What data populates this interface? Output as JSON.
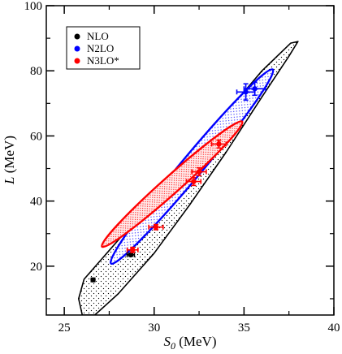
{
  "chart_data": {
    "type": "scatter",
    "title": "",
    "xlabel": {
      "main": "S",
      "sub": "0",
      "unit": " (MeV)"
    },
    "ylabel": "L (MeV)",
    "xlim": [
      24,
      40
    ],
    "ylim": [
      5,
      100
    ],
    "xticks": [
      25,
      30,
      35,
      40
    ],
    "yticks": [
      20,
      40,
      60,
      80,
      100
    ],
    "xtick_labels": [
      "25",
      "30",
      "35",
      "40"
    ],
    "ytick_labels": [
      "20",
      "40",
      "60",
      "80",
      "100"
    ],
    "legend_position": "top-left",
    "series": [
      {
        "name": "NLO",
        "color": "#000000",
        "points": [
          {
            "x": 26.6,
            "y": 15.8,
            "xerr": 0.1,
            "yerr": 0.3
          },
          {
            "x": 28.7,
            "y": 23.5,
            "xerr": 0.2,
            "yerr": 0.4
          }
        ]
      },
      {
        "name": "N2LO",
        "color": "#0000ff",
        "points": [
          {
            "x": 35.1,
            "y": 73.5,
            "xerr": 0.5,
            "yerr": 2.5
          },
          {
            "x": 35.6,
            "y": 74.5,
            "xerr": 0.6,
            "yerr": 2.0
          }
        ]
      },
      {
        "name": "N3LO*",
        "color": "#ff0000",
        "points": [
          {
            "x": 28.8,
            "y": 25.0,
            "xerr": 0.3,
            "yerr": 0.8
          },
          {
            "x": 30.1,
            "y": 32.0,
            "xerr": 0.4,
            "yerr": 0.8
          },
          {
            "x": 32.2,
            "y": 46.0,
            "xerr": 0.4,
            "yerr": 1.2
          },
          {
            "x": 32.5,
            "y": 49.0,
            "xerr": 0.4,
            "yerr": 1.2
          },
          {
            "x": 33.6,
            "y": 57.5,
            "xerr": 0.4,
            "yerr": 1.2
          }
        ]
      }
    ],
    "regions": [
      {
        "series": "NLO",
        "color": "#000000",
        "fill": "dotted",
        "outline": [
          [
            38.0,
            89.0
          ],
          [
            37.5,
            84.5
          ],
          [
            36.0,
            72.0
          ],
          [
            34.0,
            55.0
          ],
          [
            32.0,
            39.0
          ],
          [
            30.0,
            24.0
          ],
          [
            28.0,
            11.5
          ],
          [
            26.7,
            5.0
          ],
          [
            26.0,
            5.0
          ],
          [
            25.8,
            10.0
          ],
          [
            26.1,
            16.0
          ],
          [
            28.0,
            28.0
          ],
          [
            30.0,
            41.0
          ],
          [
            32.0,
            54.0
          ],
          [
            34.0,
            67.0
          ],
          [
            36.0,
            80.0
          ],
          [
            37.6,
            88.5
          ],
          [
            38.0,
            89.0
          ]
        ]
      },
      {
        "series": "N2LO",
        "color": "#0000ff",
        "fill": "dotted",
        "ellipse": {
          "cx": 32.1,
          "cy": 50.6,
          "end_x": 36.6,
          "end_y": 80.4,
          "half_width": 0.78
        }
      },
      {
        "series": "N3LO*",
        "color": "#ff0000",
        "fill": "dotted",
        "ellipse": {
          "cx": 31.0,
          "cy": 45.2,
          "end_x": 34.9,
          "end_y": 64.4,
          "half_width": 0.72
        }
      }
    ]
  }
}
